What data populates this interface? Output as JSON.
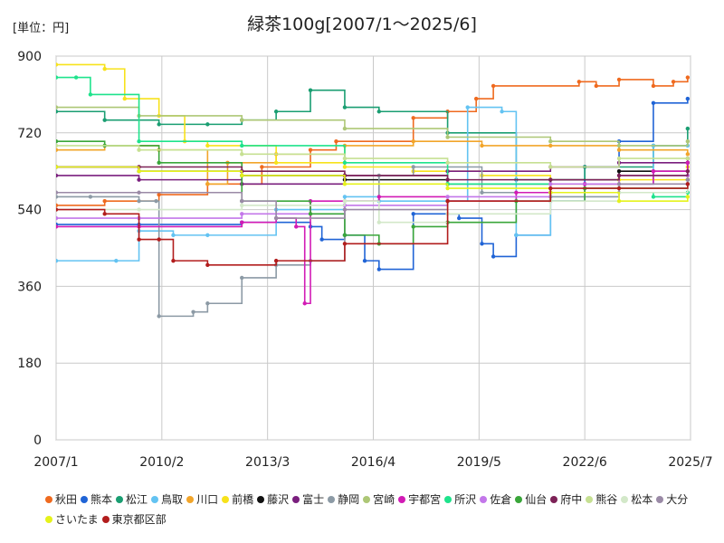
{
  "unit_label": "[単位：円]",
  "chart_data": {
    "type": "line",
    "title": "緑茶100g[2007/1～2025/6]",
    "xlabel": "",
    "ylabel": "",
    "ylim": [
      0,
      900
    ],
    "y_ticks": [
      0,
      180,
      360,
      540,
      720,
      900
    ],
    "x_ticks": [
      "2007/1",
      "2010/2",
      "2013/3",
      "2016/4",
      "2019/5",
      "2022/6",
      "2025/7"
    ],
    "x_range": [
      "2007/1",
      "2025/7"
    ],
    "grid": true,
    "legend_position": "bottom",
    "series": [
      {
        "name": "秋田",
        "color": "#ef6a1f",
        "x": [
          "2007/1",
          "2008/6",
          "2010/1",
          "2011/6",
          "2013/1",
          "2014/6",
          "2015/3",
          "2017/6",
          "2018/6",
          "2019/4",
          "2019/10",
          "2022/4",
          "2022/10",
          "2023/6",
          "2024/6",
          "2025/1",
          "2025/6"
        ],
        "values": [
          550,
          560,
          575,
          600,
          640,
          680,
          700,
          755,
          770,
          800,
          830,
          840,
          830,
          845,
          830,
          840,
          850
        ]
      },
      {
        "name": "熊本",
        "color": "#2064d6",
        "x": [
          "2007/1",
          "2009/6",
          "2012/6",
          "2014/6",
          "2014/10",
          "2015/6",
          "2016/1",
          "2016/6",
          "2017/6",
          "2018/10",
          "2019/6",
          "2019/10",
          "2020/6",
          "2021/6",
          "2022/6",
          "2023/6",
          "2024/6",
          "2025/6"
        ],
        "values": [
          505,
          505,
          510,
          500,
          470,
          480,
          420,
          400,
          530,
          520,
          460,
          430,
          480,
          560,
          640,
          700,
          790,
          800
        ]
      },
      {
        "name": "松江",
        "color": "#1a9e72",
        "x": [
          "2007/1",
          "2008/6",
          "2010/1",
          "2011/6",
          "2012/6",
          "2013/6",
          "2014/6",
          "2015/6",
          "2016/6",
          "2018/6",
          "2020/6",
          "2022/6",
          "2024/6",
          "2025/6"
        ],
        "values": [
          770,
          750,
          740,
          740,
          750,
          770,
          820,
          780,
          770,
          720,
          610,
          640,
          690,
          730
        ]
      },
      {
        "name": "鳥取",
        "color": "#63c3f2",
        "x": [
          "2007/1",
          "2008/10",
          "2009/6",
          "2010/6",
          "2011/6",
          "2013/6",
          "2015/6",
          "2016/6",
          "2018/6",
          "2019/1",
          "2020/1",
          "2020/6",
          "2021/6",
          "2022/6",
          "2024/6",
          "2025/6"
        ],
        "values": [
          420,
          420,
          490,
          480,
          480,
          540,
          570,
          560,
          560,
          780,
          770,
          480,
          580,
          600,
          690,
          690
        ]
      },
      {
        "name": "川口",
        "color": "#f2a52a",
        "x": [
          "2007/1",
          "2008/6",
          "2010/1",
          "2011/6",
          "2012/1",
          "2013/6",
          "2015/6",
          "2017/6",
          "2019/6",
          "2021/6",
          "2023/6",
          "2025/6"
        ],
        "values": [
          680,
          690,
          680,
          600,
          650,
          670,
          690,
          700,
          690,
          690,
          680,
          670
        ]
      },
      {
        "name": "前橋",
        "color": "#f7e21b",
        "x": [
          "2007/1",
          "2008/6",
          "2009/1",
          "2010/1",
          "2010/10",
          "2011/6",
          "2013/6",
          "2015/6",
          "2017/6",
          "2019/6",
          "2021/6",
          "2023/6",
          "2025/6"
        ],
        "values": [
          880,
          870,
          800,
          760,
          700,
          690,
          650,
          640,
          630,
          620,
          600,
          610,
          640
        ]
      },
      {
        "name": "藤沢",
        "color": "#111111",
        "x": [
          "2007/1",
          "2009/6",
          "2012/6",
          "2015/6",
          "2018/6",
          "2021/6",
          "2023/6",
          "2025/6"
        ],
        "values": [
          640,
          630,
          620,
          610,
          600,
          610,
          630,
          650
        ]
      },
      {
        "name": "富士",
        "color": "#7a1f7e",
        "x": [
          "2007/1",
          "2009/6",
          "2012/6",
          "2015/6",
          "2018/6",
          "2021/6",
          "2023/6",
          "2025/6"
        ],
        "values": [
          620,
          610,
          600,
          620,
          630,
          640,
          650,
          660
        ]
      },
      {
        "name": "静岡",
        "color": "#8c9aa5",
        "x": [
          "2007/1",
          "2008/1",
          "2009/6",
          "2009/12",
          "2010/1",
          "2011/1",
          "2011/6",
          "2012/6",
          "2013/6",
          "2014/6",
          "2015/6",
          "2016/6",
          "2017/6",
          "2019/6",
          "2021/6",
          "2023/6",
          "2025/6"
        ],
        "values": [
          570,
          570,
          560,
          560,
          290,
          300,
          320,
          380,
          410,
          420,
          560,
          620,
          640,
          580,
          570,
          580,
          600
        ]
      },
      {
        "name": "宮崎",
        "color": "#adc776",
        "x": [
          "2007/1",
          "2009/6",
          "2012/6",
          "2015/6",
          "2018/6",
          "2021/6",
          "2023/6",
          "2025/6"
        ],
        "values": [
          780,
          760,
          750,
          730,
          710,
          700,
          690,
          700
        ]
      },
      {
        "name": "宇都宮",
        "color": "#d21bb5",
        "x": [
          "2007/1",
          "2009/6",
          "2012/6",
          "2013/6",
          "2014/1",
          "2014/4",
          "2014/6",
          "2016/6",
          "2018/6",
          "2020/6",
          "2022/6",
          "2024/6",
          "2025/6"
        ],
        "values": [
          500,
          500,
          510,
          520,
          500,
          320,
          560,
          570,
          560,
          580,
          600,
          630,
          650
        ]
      },
      {
        "name": "所沢",
        "color": "#1ee38c",
        "x": [
          "2007/1",
          "2007/8",
          "2008/1",
          "2009/6",
          "2012/6",
          "2015/6",
          "2018/6",
          "2021/6",
          "2024/6",
          "2025/6"
        ],
        "values": [
          850,
          850,
          810,
          700,
          690,
          650,
          600,
          580,
          570,
          580
        ]
      },
      {
        "name": "佐倉",
        "color": "#c377ea",
        "x": [
          "2007/1",
          "2009/6",
          "2012/6",
          "2015/6",
          "2018/6",
          "2021/6",
          "2023/6",
          "2025/6"
        ],
        "values": [
          520,
          520,
          530,
          550,
          570,
          600,
          620,
          620
        ]
      },
      {
        "name": "仙台",
        "color": "#3aa63a",
        "x": [
          "2007/1",
          "2008/6",
          "2010/1",
          "2012/6",
          "2014/6",
          "2015/6",
          "2016/6",
          "2017/6",
          "2018/6",
          "2020/6",
          "2022/6",
          "2025/6"
        ],
        "values": [
          700,
          690,
          650,
          560,
          530,
          480,
          460,
          500,
          510,
          560,
          590,
          610
        ]
      },
      {
        "name": "府中",
        "color": "#7d2257",
        "x": [
          "2007/1",
          "2009/6",
          "2012/6",
          "2015/6",
          "2018/6",
          "2021/6",
          "2023/6",
          "2025/6"
        ],
        "values": [
          640,
          640,
          630,
          620,
          610,
          610,
          620,
          630
        ]
      },
      {
        "name": "熊谷",
        "color": "#c6e092",
        "x": [
          "2007/1",
          "2009/6",
          "2012/6",
          "2015/6",
          "2018/6",
          "2021/6",
          "2023/6",
          "2025/6"
        ],
        "values": [
          690,
          680,
          670,
          660,
          650,
          640,
          660,
          660
        ]
      },
      {
        "name": "松本",
        "color": "#d3e8c9",
        "x": [
          "2007/1",
          "2009/6",
          "2012/6",
          "2015/6",
          "2016/6",
          "2018/6",
          "2021/6",
          "2023/6",
          "2025/6"
        ],
        "values": [
          540,
          540,
          550,
          560,
          510,
          530,
          560,
          580,
          600
        ]
      },
      {
        "name": "大分",
        "color": "#9a8aa6",
        "x": [
          "2007/1",
          "2009/6",
          "2012/6",
          "2013/6",
          "2015/6",
          "2018/6",
          "2021/6",
          "2023/6",
          "2025/6"
        ],
        "values": [
          580,
          580,
          560,
          520,
          540,
          560,
          580,
          600,
          610
        ]
      },
      {
        "name": "さいたま",
        "color": "#e5f21b",
        "x": [
          "2007/1",
          "2009/6",
          "2012/6",
          "2015/6",
          "2018/6",
          "2021/6",
          "2023/6",
          "2025/6"
        ],
        "values": [
          640,
          630,
          620,
          600,
          590,
          580,
          560,
          570
        ]
      },
      {
        "name": "東京都区部",
        "color": "#b21d1d",
        "x": [
          "2007/1",
          "2008/6",
          "2009/6",
          "2010/1",
          "2010/6",
          "2011/6",
          "2013/6",
          "2015/6",
          "2018/6",
          "2021/6",
          "2023/6",
          "2025/6"
        ],
        "values": [
          540,
          530,
          470,
          470,
          420,
          410,
          420,
          460,
          560,
          590,
          590,
          600
        ]
      }
    ]
  }
}
